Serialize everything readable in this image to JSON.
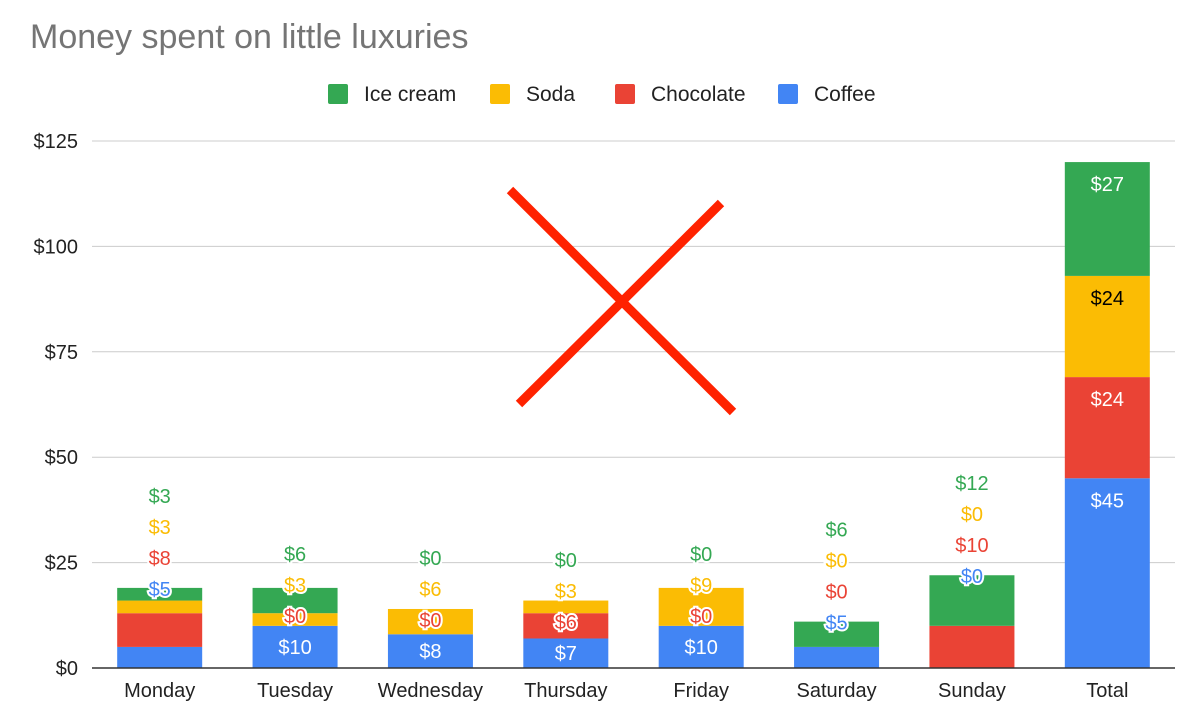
{
  "chart_data": {
    "type": "bar",
    "stacked": true,
    "title": "Money spent on little luxuries",
    "categories": [
      "Monday",
      "Tuesday",
      "Wednesday",
      "Thursday",
      "Friday",
      "Saturday",
      "Sunday",
      "Total"
    ],
    "series": [
      {
        "name": "Coffee",
        "color": "#4285f4",
        "label_color": "#ffffff",
        "values": [
          5,
          10,
          8,
          7,
          10,
          5,
          0,
          45
        ]
      },
      {
        "name": "Chocolate",
        "color": "#ea4335",
        "label_color": "#ffffff",
        "values": [
          8,
          0,
          0,
          6,
          0,
          0,
          10,
          24
        ]
      },
      {
        "name": "Soda",
        "color": "#fbbc04",
        "label_color": "#000000",
        "values": [
          3,
          3,
          6,
          3,
          9,
          0,
          0,
          24
        ]
      },
      {
        "name": "Ice cream",
        "color": "#34a853",
        "label_color": "#ffffff",
        "values": [
          3,
          6,
          0,
          0,
          0,
          6,
          12,
          27
        ]
      }
    ],
    "legend_order": [
      "Ice cream",
      "Soda",
      "Chocolate",
      "Coffee"
    ],
    "legend_position": "top",
    "y_ticks": [
      "$0",
      "$25",
      "$50",
      "$75",
      "$100",
      "$125"
    ],
    "ylim": [
      0,
      125
    ],
    "grid": true,
    "data_labels": {
      "Coffee": [
        "$5",
        "$10",
        "$8",
        "$7",
        "$10",
        "$5",
        "$0",
        "$45"
      ],
      "Chocolate": [
        "$8",
        "$0",
        "$0",
        "$6",
        "$0",
        "$0",
        "$10",
        "$24"
      ],
      "Soda": [
        "$3",
        "$3",
        "$6",
        "$3",
        "$9",
        "$0",
        "$0",
        "$24"
      ],
      "Ice cream": [
        "$3",
        "$6",
        "$0",
        "$0",
        "$0",
        "$6",
        "$12",
        "$27"
      ]
    },
    "annotation": {
      "type": "red-x-mark",
      "color": "#ff2200"
    }
  }
}
